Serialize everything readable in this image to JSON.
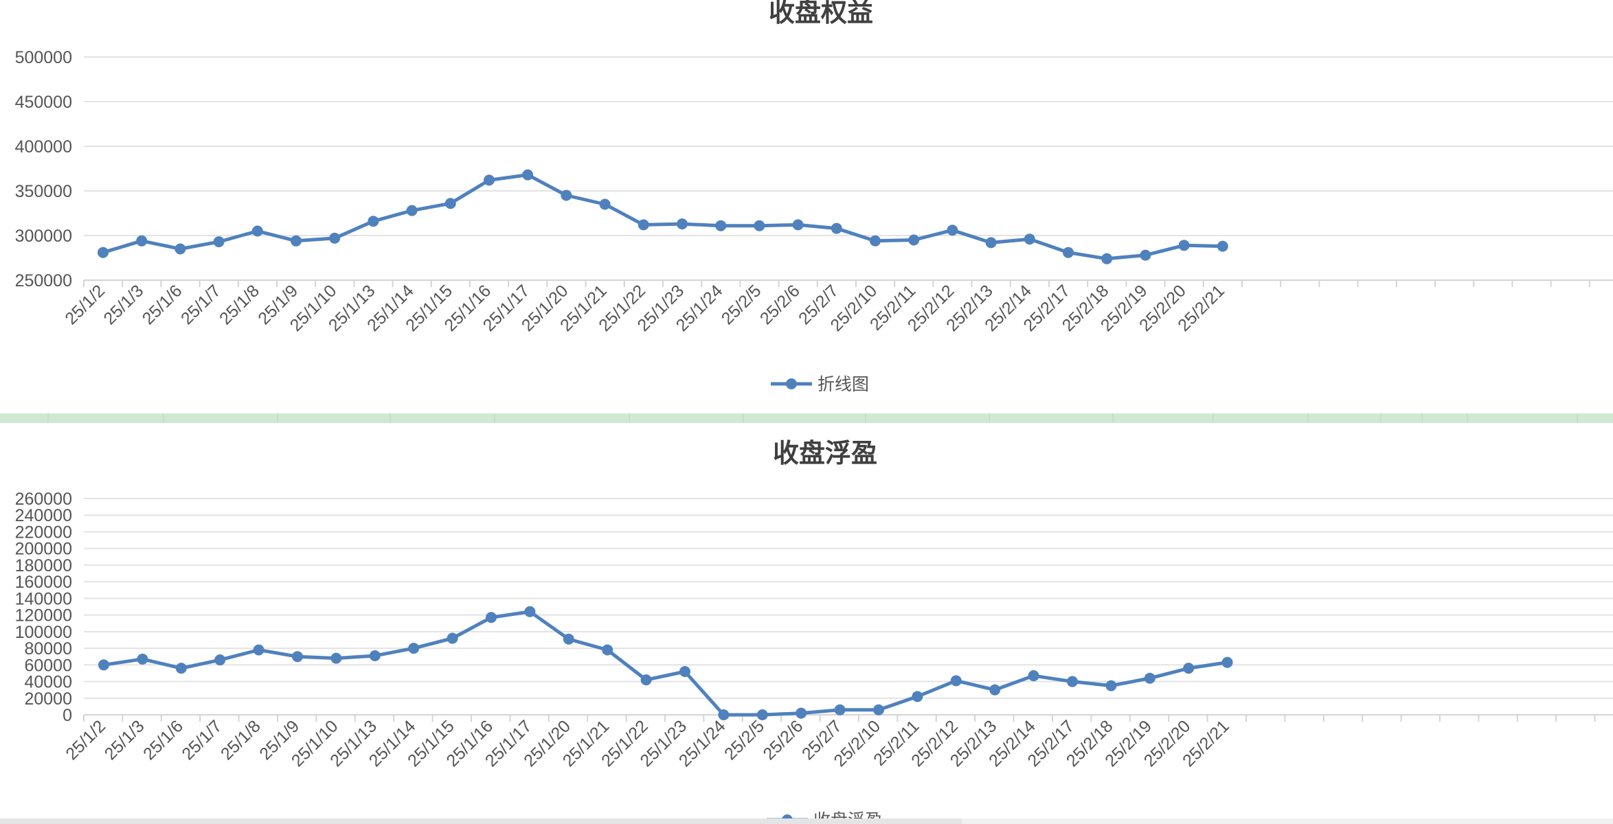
{
  "chart_data": [
    {
      "type": "line",
      "title": "收盘权益",
      "categories": [
        "25/1/2",
        "25/1/3",
        "25/1/6",
        "25/1/7",
        "25/1/8",
        "25/1/9",
        "25/1/10",
        "25/1/13",
        "25/1/14",
        "25/1/15",
        "25/1/16",
        "25/1/17",
        "25/1/20",
        "25/1/21",
        "25/1/22",
        "25/1/23",
        "25/1/24",
        "25/2/5",
        "25/2/6",
        "25/2/7",
        "25/2/10",
        "25/2/11",
        "25/2/12",
        "25/2/13",
        "25/2/14",
        "25/2/17",
        "25/2/18",
        "25/2/19",
        "25/2/20",
        "25/2/21"
      ],
      "series": [
        {
          "name": "折线图",
          "values": [
            281000,
            294000,
            285000,
            293000,
            305000,
            294000,
            297000,
            316000,
            328000,
            336000,
            362000,
            368000,
            345000,
            335000,
            312000,
            313000,
            311000,
            311000,
            312000,
            308000,
            294000,
            295000,
            306000,
            292000,
            296000,
            281000,
            274000,
            278000,
            289000,
            288000
          ]
        }
      ],
      "yticks": [
        250000,
        300000,
        350000,
        400000,
        450000,
        500000
      ],
      "ylim": [
        250000,
        500000
      ],
      "grid": true,
      "legend": "bottom",
      "color": "#4f81bd"
    },
    {
      "type": "line",
      "title": "收盘浮盈",
      "categories": [
        "25/1/2",
        "25/1/3",
        "25/1/6",
        "25/1/7",
        "25/1/8",
        "25/1/9",
        "25/1/10",
        "25/1/13",
        "25/1/14",
        "25/1/15",
        "25/1/16",
        "25/1/17",
        "25/1/20",
        "25/1/21",
        "25/1/22",
        "25/1/23",
        "25/1/24",
        "25/2/5",
        "25/2/6",
        "25/2/7",
        "25/2/10",
        "25/2/11",
        "25/2/12",
        "25/2/13",
        "25/2/14",
        "25/2/17",
        "25/2/18",
        "25/2/19",
        "25/2/20",
        "25/2/21"
      ],
      "series": [
        {
          "name": "收盘浮盈",
          "values": [
            60000,
            67000,
            56000,
            66000,
            78000,
            70000,
            68000,
            71000,
            80000,
            92000,
            117000,
            124000,
            91000,
            78000,
            42000,
            52000,
            0,
            0,
            2000,
            6000,
            6000,
            22000,
            41000,
            30000,
            47000,
            40000,
            35000,
            44000,
            56000,
            63000
          ]
        }
      ],
      "yticks": [
        0,
        20000,
        40000,
        60000,
        80000,
        100000,
        120000,
        140000,
        160000,
        180000,
        200000,
        220000,
        240000,
        260000
      ],
      "ylim": [
        0,
        260000
      ],
      "grid": true,
      "legend": "bottom",
      "color": "#4f81bd"
    }
  ]
}
